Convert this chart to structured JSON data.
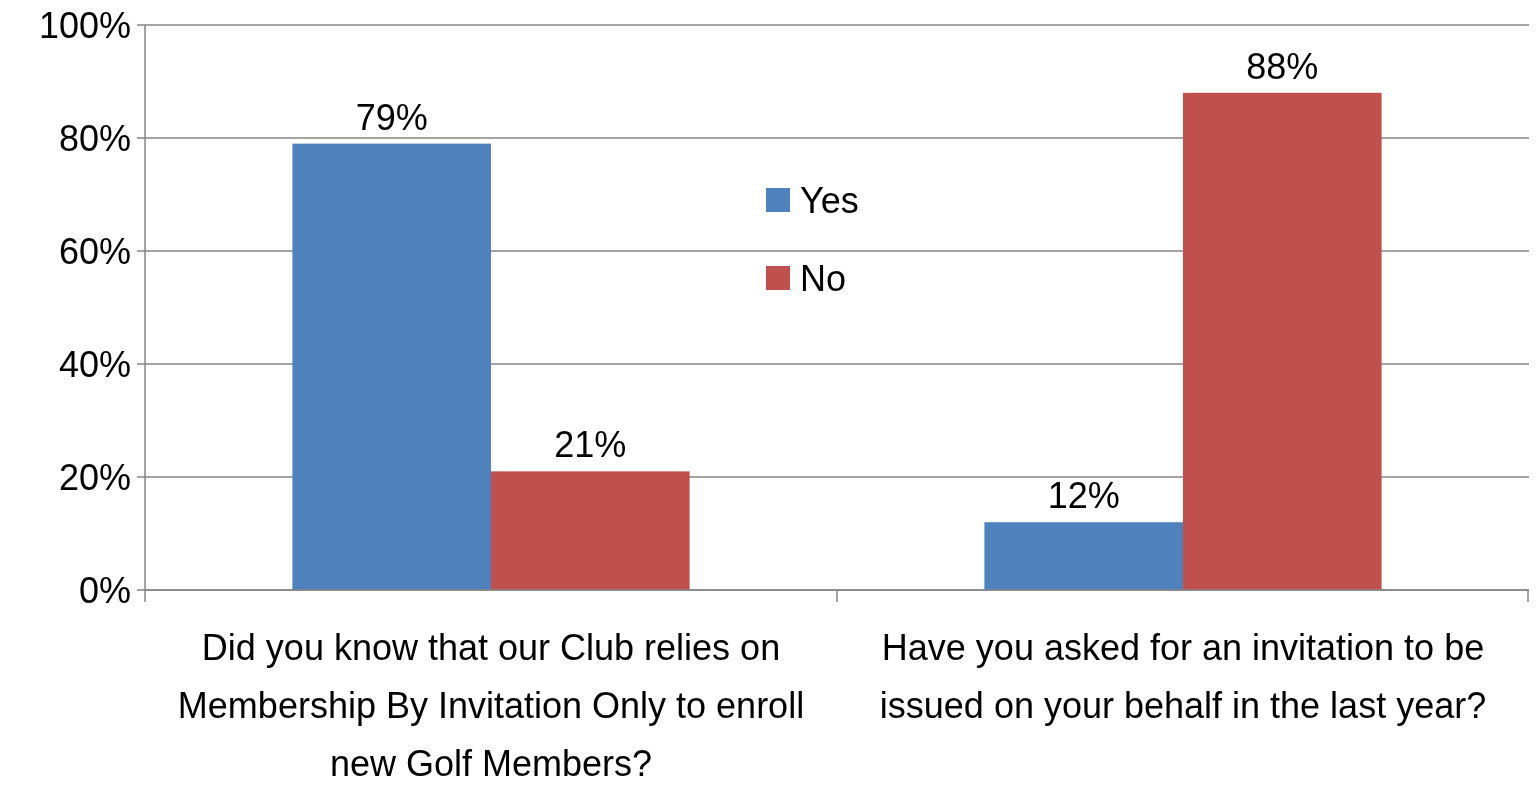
{
  "chart_data": {
    "type": "bar",
    "categories": [
      "Did you know that our Club relies on Membership By Invitation Only to enroll new Golf Members?",
      "Have you asked for an invitation to be issued on your behalf in the last year?"
    ],
    "series": [
      {
        "name": "Yes",
        "color": "#4f81bd",
        "values": [
          79,
          12
        ],
        "value_labels": [
          "79%",
          "12%"
        ]
      },
      {
        "name": "No",
        "color": "#c0504d",
        "values": [
          21,
          88
        ],
        "value_labels": [
          "21%",
          "88%"
        ]
      }
    ],
    "ylim": [
      0,
      100
    ],
    "yticks": [
      {
        "value": 0,
        "label": "0%"
      },
      {
        "value": 20,
        "label": "20%"
      },
      {
        "value": 40,
        "label": "40%"
      },
      {
        "value": 60,
        "label": "60%"
      },
      {
        "value": 80,
        "label": "80%"
      },
      {
        "value": 100,
        "label": "100%"
      }
    ],
    "grid": "y",
    "legend": "top"
  }
}
